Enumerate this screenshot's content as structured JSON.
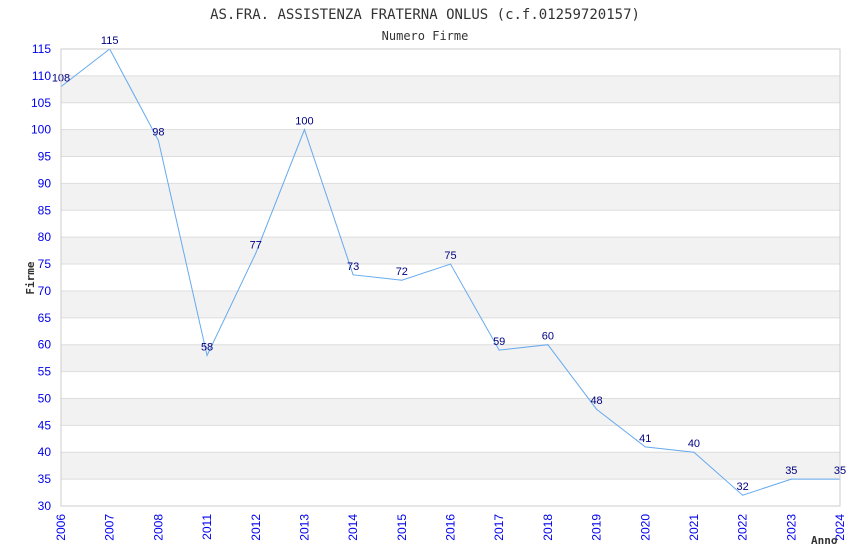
{
  "chart_data": {
    "type": "line",
    "title": "AS.FRA. ASSISTENZA FRATERNA ONLUS (c.f.01259720157)",
    "subtitle": "Numero Firme",
    "xlabel": "Anno",
    "ylabel": "Firme",
    "categories": [
      "2006",
      "2007",
      "2008",
      "2011",
      "2012",
      "2013",
      "2014",
      "2015",
      "2016",
      "2017",
      "2018",
      "2019",
      "2020",
      "2021",
      "2022",
      "2023",
      "2024"
    ],
    "series": [
      {
        "name": "Numero Firme",
        "values": [
          108,
          115,
          98,
          58,
          77,
          100,
          73,
          72,
          75,
          59,
          60,
          48,
          41,
          40,
          32,
          35,
          35
        ]
      }
    ],
    "ylim": [
      30,
      115
    ],
    "yticks": [
      30,
      35,
      40,
      45,
      50,
      55,
      60,
      65,
      70,
      75,
      80,
      85,
      90,
      95,
      100,
      105,
      110,
      115
    ],
    "grid": true,
    "line_color": "#66aaee",
    "tick_color": "#0000ee",
    "label_color": "#000080"
  }
}
